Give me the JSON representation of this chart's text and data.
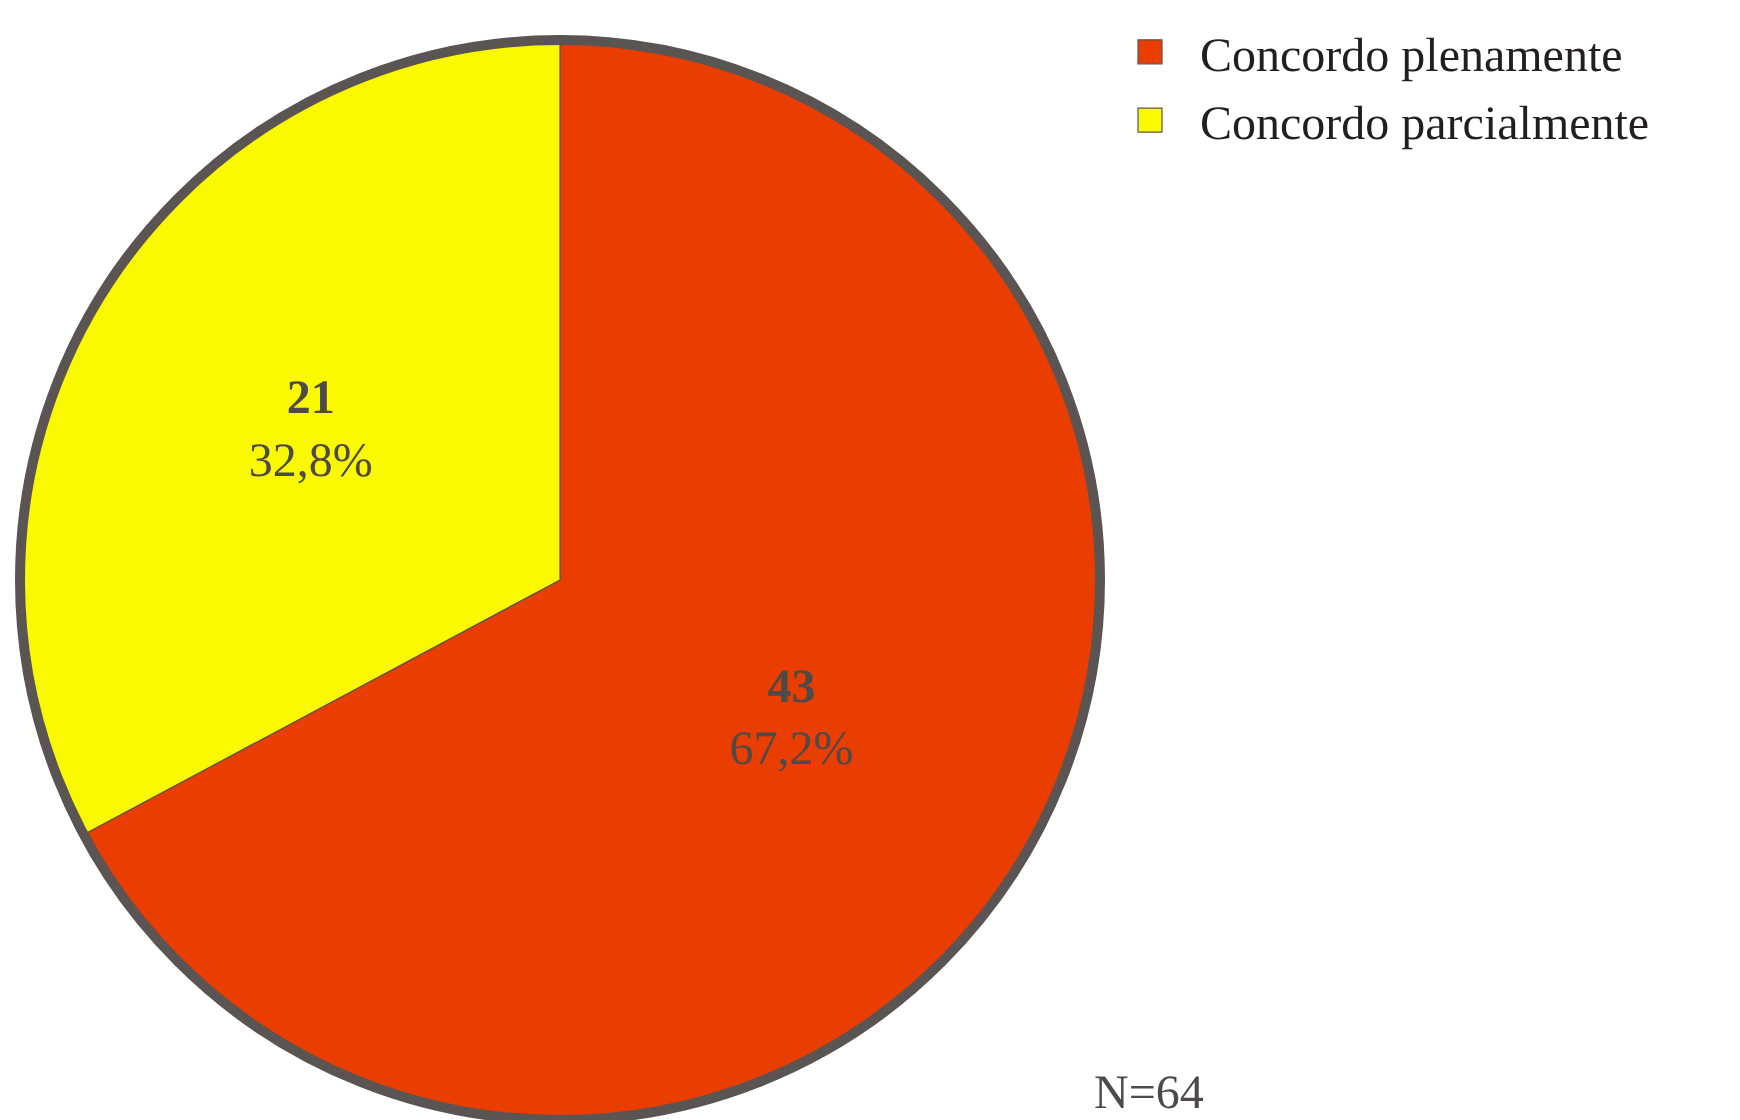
{
  "chart_data": {
    "type": "pie",
    "categories": [
      "Concordo plenamente",
      "Concordo parcialmente"
    ],
    "values": [
      43,
      21
    ],
    "colors": [
      "#ea3d00",
      "#fbf900"
    ],
    "value_labels": [
      "43\n67,2%",
      "21\n32,8%"
    ],
    "legend": "top right",
    "annotations": [
      "N=64"
    ]
  }
}
